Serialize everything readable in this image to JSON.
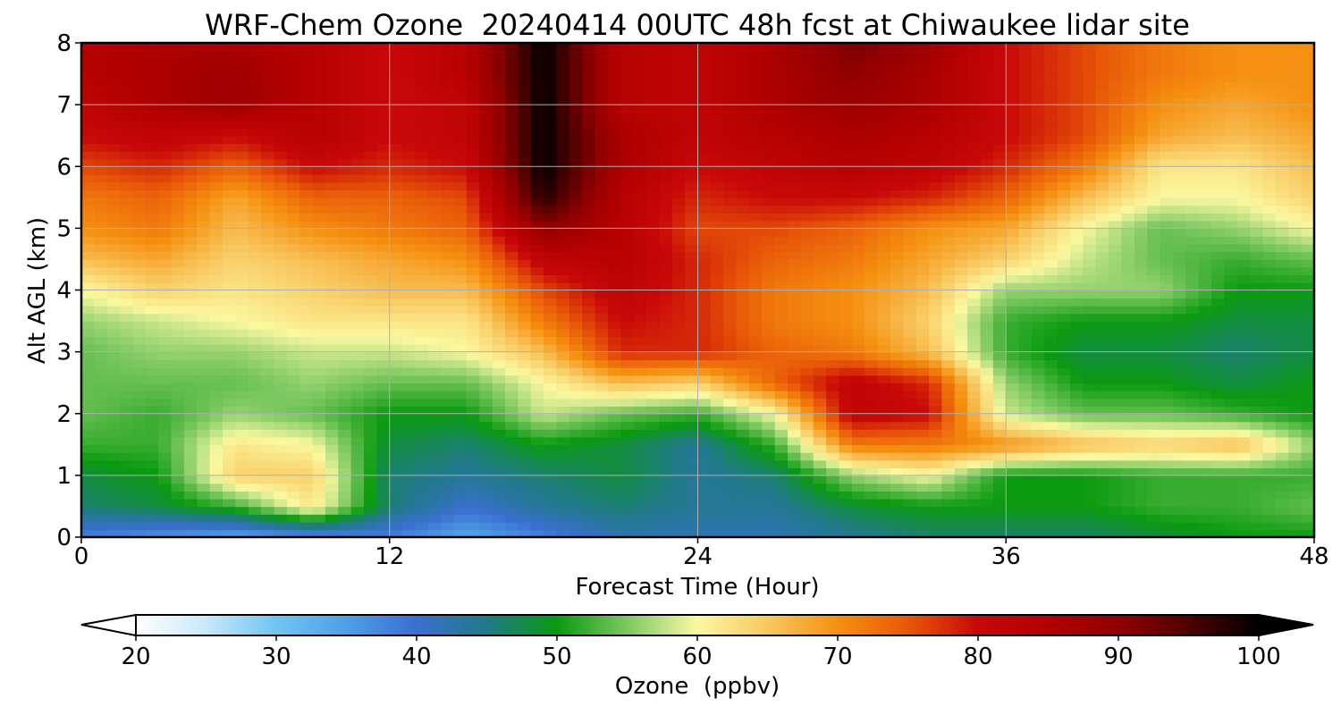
{
  "chart_data": {
    "type": "heatmap",
    "title": "WRF-Chem Ozone  20240414 00UTC 48h fcst at Chiwaukee lidar site",
    "xlabel": "Forecast Time (Hour)",
    "ylabel": "Alt AGL (km)",
    "xlim": [
      0,
      48
    ],
    "ylim": [
      0,
      8
    ],
    "xticks": [
      0,
      12,
      24,
      36,
      48
    ],
    "yticks": [
      0,
      1,
      2,
      3,
      4,
      5,
      6,
      7,
      8
    ],
    "grid": true,
    "x": [
      0,
      3,
      6,
      9,
      12,
      15,
      18,
      21,
      24,
      27,
      30,
      33,
      36,
      39,
      42,
      45,
      48
    ],
    "y": [
      0,
      0.5,
      1,
      1.5,
      2,
      2.5,
      3,
      3.5,
      4,
      4.5,
      5,
      5.5,
      6,
      6.5,
      7,
      7.5,
      8
    ],
    "values": [
      [
        38,
        36,
        34,
        36,
        38,
        34,
        38,
        42,
        42,
        42,
        44,
        46,
        46,
        46,
        48,
        50,
        50
      ],
      [
        46,
        48,
        52,
        62,
        46,
        40,
        44,
        46,
        44,
        44,
        48,
        50,
        50,
        50,
        52,
        52,
        54
      ],
      [
        48,
        50,
        64,
        64,
        46,
        44,
        46,
        48,
        44,
        46,
        56,
        60,
        50,
        50,
        52,
        52,
        52
      ],
      [
        52,
        52,
        62,
        60,
        48,
        46,
        50,
        48,
        44,
        52,
        72,
        72,
        70,
        66,
        64,
        66,
        56
      ],
      [
        54,
        52,
        56,
        54,
        50,
        50,
        58,
        54,
        52,
        60,
        82,
        80,
        58,
        54,
        54,
        52,
        50
      ],
      [
        54,
        54,
        54,
        56,
        54,
        54,
        60,
        66,
        64,
        74,
        82,
        78,
        56,
        50,
        50,
        48,
        50
      ],
      [
        54,
        56,
        56,
        58,
        58,
        60,
        66,
        78,
        78,
        74,
        72,
        66,
        52,
        48,
        48,
        46,
        48
      ],
      [
        56,
        58,
        60,
        62,
        62,
        62,
        72,
        80,
        78,
        72,
        70,
        64,
        52,
        50,
        50,
        48,
        48
      ],
      [
        60,
        64,
        62,
        64,
        66,
        66,
        76,
        82,
        78,
        72,
        70,
        66,
        56,
        56,
        56,
        50,
        50
      ],
      [
        66,
        68,
        64,
        66,
        68,
        70,
        82,
        84,
        78,
        74,
        72,
        68,
        64,
        58,
        54,
        52,
        54
      ],
      [
        70,
        72,
        66,
        70,
        72,
        74,
        90,
        84,
        76,
        76,
        74,
        70,
        68,
        60,
        54,
        56,
        60
      ],
      [
        72,
        74,
        68,
        74,
        74,
        76,
        98,
        84,
        78,
        80,
        80,
        78,
        74,
        66,
        60,
        60,
        64
      ],
      [
        76,
        78,
        74,
        80,
        78,
        80,
        100,
        86,
        80,
        82,
        84,
        82,
        78,
        72,
        62,
        62,
        66
      ],
      [
        80,
        82,
        80,
        84,
        80,
        82,
        100,
        86,
        82,
        84,
        86,
        84,
        80,
        76,
        68,
        66,
        68
      ],
      [
        82,
        86,
        88,
        84,
        80,
        82,
        100,
        84,
        82,
        86,
        88,
        86,
        80,
        76,
        70,
        68,
        70
      ],
      [
        84,
        86,
        88,
        84,
        80,
        84,
        100,
        84,
        82,
        86,
        90,
        86,
        80,
        76,
        72,
        70,
        70
      ],
      [
        84,
        86,
        86,
        84,
        80,
        84,
        100,
        84,
        82,
        86,
        92,
        88,
        80,
        76,
        72,
        70,
        70
      ]
    ],
    "colorbar": {
      "label": "Ozone  (ppbv)",
      "min": 20,
      "max": 100,
      "ticks": [
        20,
        30,
        40,
        50,
        60,
        70,
        80,
        90,
        100
      ],
      "extend": "both",
      "stops": [
        {
          "v": 20,
          "c": "#ffffff"
        },
        {
          "v": 25,
          "c": "#c8e8f8"
        },
        {
          "v": 30,
          "c": "#6fc4f2"
        },
        {
          "v": 35,
          "c": "#4f9fe8"
        },
        {
          "v": 40,
          "c": "#3a6fd0"
        },
        {
          "v": 45,
          "c": "#207a88"
        },
        {
          "v": 50,
          "c": "#0a9a10"
        },
        {
          "v": 55,
          "c": "#7cc860"
        },
        {
          "v": 58,
          "c": "#c8e68a"
        },
        {
          "v": 60,
          "c": "#fbf8a0"
        },
        {
          "v": 65,
          "c": "#f8c860"
        },
        {
          "v": 70,
          "c": "#f59010"
        },
        {
          "v": 75,
          "c": "#e85808"
        },
        {
          "v": 80,
          "c": "#c80808"
        },
        {
          "v": 85,
          "c": "#b20000"
        },
        {
          "v": 90,
          "c": "#900000"
        },
        {
          "v": 95,
          "c": "#500000"
        },
        {
          "v": 100,
          "c": "#000000"
        }
      ]
    }
  }
}
